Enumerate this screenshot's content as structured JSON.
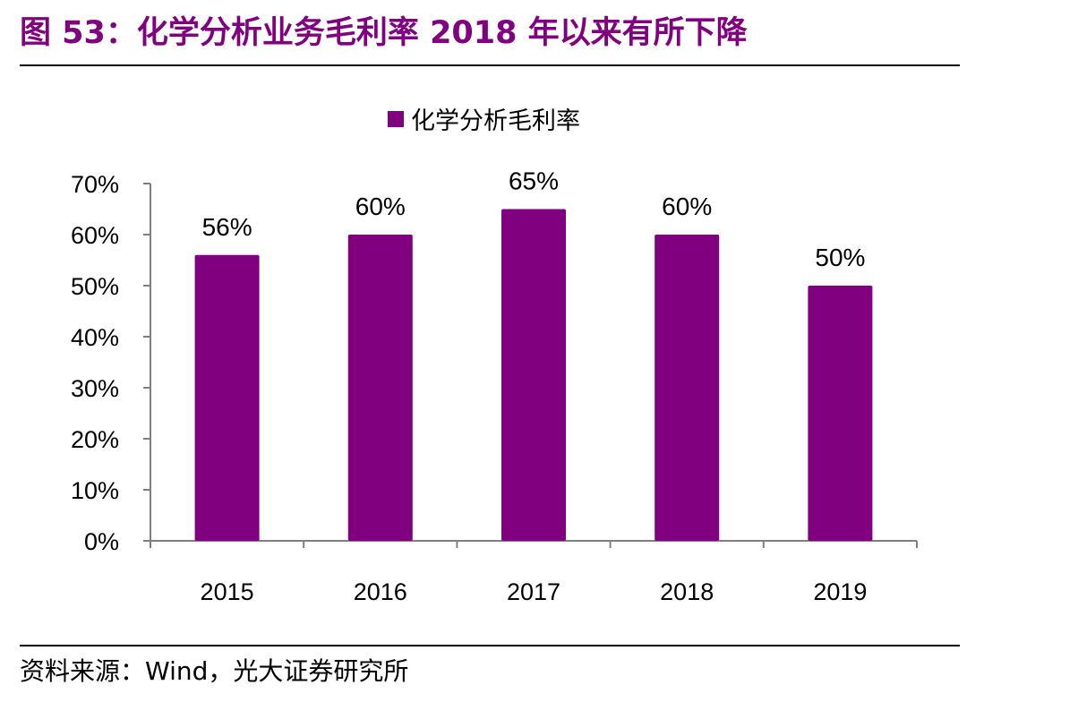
{
  "title": "图 53：化学分析业务毛利率 2018 年以来有所下降",
  "source": "资料来源：Wind，光大证券研究所",
  "colors": {
    "accent": "#800080",
    "axis": "#7f7f7f"
  },
  "chart_data": {
    "type": "bar",
    "categories": [
      "2015",
      "2016",
      "2017",
      "2018",
      "2019"
    ],
    "series": [
      {
        "name": "化学分析毛利率",
        "values": [
          56,
          60,
          65,
          60,
          50
        ],
        "labels": [
          "56%",
          "60%",
          "65%",
          "60%",
          "50%"
        ]
      }
    ],
    "y_ticks": [
      "0%",
      "10%",
      "20%",
      "30%",
      "40%",
      "50%",
      "60%",
      "70%"
    ],
    "ylim": [
      0,
      70
    ],
    "legend": "top-center",
    "grid": false
  }
}
